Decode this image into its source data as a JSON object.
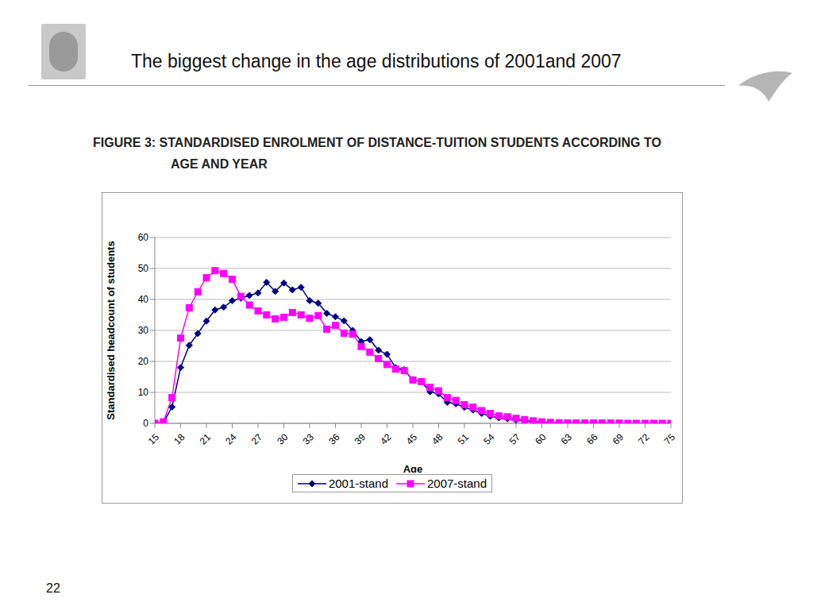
{
  "slide": {
    "title": "The biggest change in the age distributions of 2001and 2007",
    "page_number": "22"
  },
  "chart_data": {
    "type": "line",
    "title": "FIGURE 3: STANDARDISED ENROLMENT OF DISTANCE-TUITION STUDENTS ACCORDING TO AGE AND YEAR",
    "x_label": "Age",
    "y_label": "Standardised headcount of students",
    "x": [
      15,
      16,
      17,
      18,
      19,
      20,
      21,
      22,
      23,
      24,
      25,
      26,
      27,
      28,
      29,
      30,
      31,
      32,
      33,
      34,
      35,
      36,
      37,
      38,
      39,
      40,
      41,
      42,
      43,
      44,
      45,
      46,
      47,
      48,
      49,
      50,
      51,
      52,
      53,
      54,
      55,
      56,
      57,
      58,
      59,
      60,
      61,
      62,
      63,
      64,
      65,
      66,
      67,
      68,
      69,
      70,
      71,
      72,
      73,
      74,
      75
    ],
    "xlim": [
      15,
      75
    ],
    "xticks": [
      15,
      18,
      21,
      24,
      27,
      30,
      33,
      36,
      39,
      42,
      45,
      48,
      51,
      54,
      57,
      60,
      63,
      66,
      69,
      72,
      75
    ],
    "ylim": [
      0,
      60
    ],
    "yticks": [
      0,
      10,
      20,
      30,
      40,
      50,
      60
    ],
    "grid": true,
    "legend": "bottom",
    "series": [
      {
        "name": "2001-stand",
        "color": "#000080",
        "marker": "diamond",
        "values": [
          0,
          0.2,
          5.3,
          18,
          25.2,
          29,
          33,
          36.6,
          37.5,
          39.6,
          40.4,
          41.3,
          42.1,
          45.5,
          42.6,
          45.3,
          43.1,
          43.9,
          39.6,
          38.8,
          35.5,
          34.4,
          33.1,
          30,
          26.4,
          27,
          23.6,
          22.3,
          18,
          17.3,
          14,
          13.4,
          10.2,
          9.5,
          6.8,
          6.3,
          5.2,
          4.3,
          3.2,
          2.3,
          1.8,
          1.5,
          1.1,
          0.8,
          0.5,
          0.3,
          0.2,
          0.15,
          0.1,
          0.1,
          0.1,
          0.1,
          0.1,
          0,
          0,
          0,
          0,
          0,
          0,
          0,
          0
        ]
      },
      {
        "name": "2007-stand",
        "color": "#FF00FF",
        "marker": "square",
        "values": [
          0,
          0.5,
          8.3,
          27.5,
          37.3,
          42.5,
          47,
          49.3,
          48.4,
          46.5,
          41,
          38.2,
          36.3,
          35,
          33.7,
          34.2,
          35.8,
          35,
          33.9,
          34.8,
          30.4,
          31.6,
          29.1,
          28.8,
          24.8,
          23,
          20.9,
          19,
          17.5,
          17,
          14,
          13.5,
          11.6,
          10.5,
          8.3,
          7.4,
          6,
          5.2,
          4.1,
          3.2,
          2.4,
          2.1,
          1.6,
          1.2,
          0.8,
          0.5,
          0.3,
          0.2,
          0.15,
          0.1,
          0.1,
          0.1,
          0.1,
          0.1,
          0.05,
          0,
          0,
          0,
          0,
          0,
          0
        ]
      }
    ]
  }
}
